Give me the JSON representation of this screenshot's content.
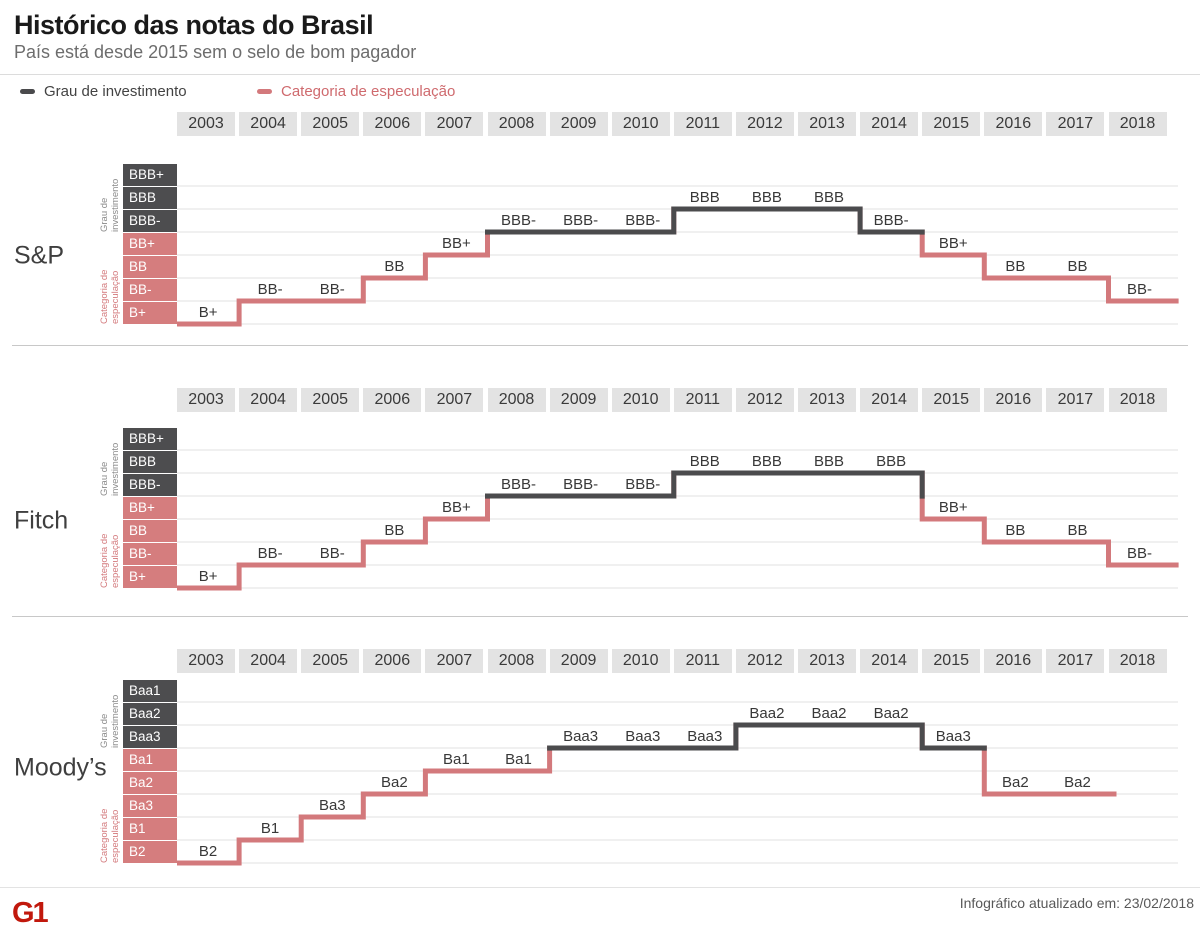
{
  "header": {
    "title": "Histórico das notas do Brasil",
    "subtitle": "País está desde 2015 sem o selo de bom pagador"
  },
  "legend": {
    "investment_label": "Grau de investimento",
    "speculation_label": "Categoria de especulação"
  },
  "axis_group_labels": {
    "investment": [
      "Grau de",
      "investimento"
    ],
    "speculation": [
      "Categoria de",
      "especulação"
    ]
  },
  "colors": {
    "investment_line": "#4b4b4d",
    "speculation_line": "#d3797c",
    "investment_box": "#4d4d4f",
    "speculation_box": "#d57d7e",
    "gridline": "#e8e8e8",
    "year_box_bg": "#e3e3e3",
    "label_text": "#383838",
    "logo_red": "#c1180c"
  },
  "chart_data": [
    {
      "type": "line",
      "style": "step",
      "agency": "S&P",
      "categories": [
        "2003",
        "2004",
        "2005",
        "2006",
        "2007",
        "2008",
        "2009",
        "2010",
        "2011",
        "2012",
        "2013",
        "2014",
        "2015",
        "2016",
        "2017",
        "2018"
      ],
      "scale_top_to_bottom": [
        "BBB+",
        "BBB",
        "BBB-",
        "BB+",
        "BB",
        "BB-",
        "B+"
      ],
      "investment_grade": [
        "BBB+",
        "BBB",
        "BBB-"
      ],
      "values": [
        "B+",
        "BB-",
        "BB-",
        "BB",
        "BB+",
        "BBB-",
        "BBB-",
        "BBB-",
        "BBB",
        "BBB",
        "BBB",
        "BBB-",
        "BB+",
        "BB",
        "BB",
        "BB-"
      ]
    },
    {
      "type": "line",
      "style": "step",
      "agency": "Fitch",
      "categories": [
        "2003",
        "2004",
        "2005",
        "2006",
        "2007",
        "2008",
        "2009",
        "2010",
        "2011",
        "2012",
        "2013",
        "2014",
        "2015",
        "2016",
        "2017",
        "2018"
      ],
      "scale_top_to_bottom": [
        "BBB+",
        "BBB",
        "BBB-",
        "BB+",
        "BB",
        "BB-",
        "B+"
      ],
      "investment_grade": [
        "BBB+",
        "BBB",
        "BBB-"
      ],
      "values": [
        "B+",
        "BB-",
        "BB-",
        "BB",
        "BB+",
        "BBB-",
        "BBB-",
        "BBB-",
        "BBB",
        "BBB",
        "BBB",
        "BBB",
        "BB+",
        "BB",
        "BB",
        "BB-"
      ]
    },
    {
      "type": "line",
      "style": "step",
      "agency": "Moody’s",
      "categories": [
        "2003",
        "2004",
        "2005",
        "2006",
        "2007",
        "2008",
        "2009",
        "2010",
        "2011",
        "2012",
        "2013",
        "2014",
        "2015",
        "2016",
        "2017",
        "2018"
      ],
      "scale_top_to_bottom": [
        "Baa1",
        "Baa2",
        "Baa3",
        "Ba1",
        "Ba2",
        "Ba3",
        "B1",
        "B2"
      ],
      "investment_grade": [
        "Baa1",
        "Baa2",
        "Baa3"
      ],
      "values": [
        "B2",
        "B1",
        "Ba3",
        "Ba2",
        "Ba1",
        "Ba1",
        "Baa3",
        "Baa3",
        "Baa3",
        "Baa2",
        "Baa2",
        "Baa2",
        "Baa3",
        "Ba2",
        "Ba2",
        null
      ]
    }
  ],
  "footer": {
    "logo": "G1",
    "note": "Infográfico atualizado em: 23/02/2018"
  }
}
